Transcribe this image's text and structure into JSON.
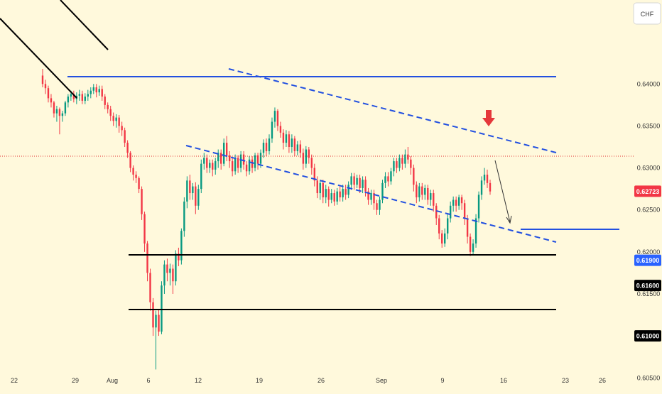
{
  "currency_label": "CHF",
  "chart_data": {
    "type": "candlestick",
    "title": "",
    "xlabel": "",
    "ylabel": "",
    "ylim": [
      0.6035,
      0.65
    ],
    "y_ticks": [
      "0.64000",
      "0.63500",
      "0.63000",
      "0.62500",
      "0.62000",
      "0.61500",
      "0.60500"
    ],
    "x_ticks": [
      "22",
      "29",
      "Aug",
      "6",
      "12",
      "19",
      "26",
      "Sep",
      "9",
      "16",
      "23",
      "26"
    ],
    "price_labels": [
      {
        "text": "0.62723",
        "value": 0.62723,
        "style": "current"
      },
      {
        "text": "0.61900",
        "value": 0.619,
        "style": "target"
      },
      {
        "text": "0.61600",
        "value": 0.616,
        "style": "level"
      },
      {
        "text": "0.61000",
        "value": 0.61,
        "style": "level"
      }
    ],
    "candles": [
      [
        0.641,
        0.64,
        0.6418,
        0.6396
      ],
      [
        0.64,
        0.6395,
        0.6405,
        0.6388
      ],
      [
        0.6395,
        0.6383,
        0.6398,
        0.6378
      ],
      [
        0.6383,
        0.6378,
        0.6388,
        0.6372
      ],
      [
        0.6378,
        0.6365,
        0.638,
        0.636
      ],
      [
        0.6365,
        0.637,
        0.6374,
        0.6355
      ],
      [
        0.637,
        0.6362,
        0.6372,
        0.634
      ],
      [
        0.6362,
        0.6365,
        0.6368,
        0.6355
      ],
      [
        0.6365,
        0.6378,
        0.638,
        0.6362
      ],
      [
        0.6378,
        0.6385,
        0.6388,
        0.6372
      ],
      [
        0.6385,
        0.6388,
        0.6392,
        0.638
      ],
      [
        0.6388,
        0.6382,
        0.6392,
        0.6378
      ],
      [
        0.6382,
        0.6386,
        0.639,
        0.6376
      ],
      [
        0.6386,
        0.6388,
        0.6393,
        0.638
      ],
      [
        0.6388,
        0.638,
        0.6392,
        0.6376
      ],
      [
        0.638,
        0.6385,
        0.6389,
        0.6376
      ],
      [
        0.6385,
        0.6388,
        0.6393,
        0.638
      ],
      [
        0.6388,
        0.6392,
        0.6396,
        0.6383
      ],
      [
        0.6392,
        0.6396,
        0.64,
        0.6388
      ],
      [
        0.6396,
        0.639,
        0.64,
        0.6384
      ],
      [
        0.639,
        0.6394,
        0.6398,
        0.6386
      ],
      [
        0.6394,
        0.6385,
        0.6398,
        0.638
      ],
      [
        0.6385,
        0.6375,
        0.6388,
        0.637
      ],
      [
        0.6375,
        0.637,
        0.6378,
        0.6365
      ],
      [
        0.637,
        0.6362,
        0.6374,
        0.6356
      ],
      [
        0.6362,
        0.6356,
        0.6366,
        0.635
      ],
      [
        0.6356,
        0.636,
        0.6364,
        0.6348
      ],
      [
        0.636,
        0.635,
        0.6363,
        0.6342
      ],
      [
        0.635,
        0.6345,
        0.6355,
        0.6338
      ],
      [
        0.6345,
        0.633,
        0.6348,
        0.6325
      ],
      [
        0.633,
        0.6318,
        0.6333,
        0.6312
      ],
      [
        0.6318,
        0.63,
        0.632,
        0.6295
      ],
      [
        0.63,
        0.6292,
        0.6303,
        0.6285
      ],
      [
        0.6292,
        0.6288,
        0.6296,
        0.6282
      ],
      [
        0.6288,
        0.6275,
        0.629,
        0.627
      ],
      [
        0.6275,
        0.6245,
        0.6278,
        0.6238
      ],
      [
        0.6245,
        0.621,
        0.6248,
        0.62
      ],
      [
        0.621,
        0.6175,
        0.6213,
        0.6165
      ],
      [
        0.6175,
        0.614,
        0.618,
        0.613
      ],
      [
        0.614,
        0.611,
        0.6145,
        0.61
      ],
      [
        0.611,
        0.6125,
        0.613,
        0.606
      ],
      [
        0.6125,
        0.6105,
        0.6132,
        0.61
      ],
      [
        0.6105,
        0.616,
        0.6165,
        0.6102
      ],
      [
        0.616,
        0.6185,
        0.619,
        0.615
      ],
      [
        0.6185,
        0.6175,
        0.6192,
        0.6165
      ],
      [
        0.6175,
        0.618,
        0.6186,
        0.616
      ],
      [
        0.618,
        0.6165,
        0.6185,
        0.615
      ],
      [
        0.6165,
        0.6198,
        0.6202,
        0.616
      ],
      [
        0.6198,
        0.619,
        0.6205,
        0.6183
      ],
      [
        0.619,
        0.6225,
        0.6228,
        0.6185
      ],
      [
        0.6225,
        0.626,
        0.6265,
        0.6218
      ],
      [
        0.626,
        0.6285,
        0.629,
        0.6252
      ],
      [
        0.6285,
        0.627,
        0.6292,
        0.6262
      ],
      [
        0.627,
        0.6278,
        0.6282,
        0.6262
      ],
      [
        0.6278,
        0.6255,
        0.6283,
        0.6245
      ],
      [
        0.6255,
        0.6275,
        0.628,
        0.625
      ],
      [
        0.6275,
        0.6305,
        0.631,
        0.627
      ],
      [
        0.6305,
        0.6312,
        0.6318,
        0.6298
      ],
      [
        0.6312,
        0.63,
        0.6316,
        0.6294
      ],
      [
        0.63,
        0.6306,
        0.631,
        0.6294
      ],
      [
        0.6306,
        0.6298,
        0.631,
        0.629
      ],
      [
        0.6298,
        0.6308,
        0.6312,
        0.6292
      ],
      [
        0.6308,
        0.6318,
        0.6322,
        0.63
      ],
      [
        0.6318,
        0.6305,
        0.6322,
        0.6298
      ],
      [
        0.6305,
        0.633,
        0.6335,
        0.6302
      ],
      [
        0.633,
        0.6315,
        0.6338,
        0.6308
      ],
      [
        0.6315,
        0.6308,
        0.632,
        0.63
      ],
      [
        0.6308,
        0.6296,
        0.6312,
        0.629
      ],
      [
        0.6296,
        0.6312,
        0.6316,
        0.6292
      ],
      [
        0.6312,
        0.63,
        0.6315,
        0.6294
      ],
      [
        0.63,
        0.6316,
        0.632,
        0.6295
      ],
      [
        0.6316,
        0.6304,
        0.632,
        0.6298
      ],
      [
        0.6304,
        0.6296,
        0.6308,
        0.629
      ],
      [
        0.6296,
        0.631,
        0.6314,
        0.6292
      ],
      [
        0.631,
        0.63,
        0.6314,
        0.6294
      ],
      [
        0.63,
        0.6315,
        0.6318,
        0.6296
      ],
      [
        0.6315,
        0.6305,
        0.6318,
        0.6298
      ],
      [
        0.6305,
        0.6318,
        0.6322,
        0.63
      ],
      [
        0.6318,
        0.633,
        0.6334,
        0.6312
      ],
      [
        0.633,
        0.632,
        0.6335,
        0.6314
      ],
      [
        0.632,
        0.6335,
        0.634,
        0.6316
      ],
      [
        0.6335,
        0.6355,
        0.636,
        0.633
      ],
      [
        0.6355,
        0.6368,
        0.6372,
        0.6348
      ],
      [
        0.6368,
        0.635,
        0.637,
        0.6344
      ],
      [
        0.635,
        0.6342,
        0.6355,
        0.6336
      ],
      [
        0.6342,
        0.633,
        0.6346,
        0.6322
      ],
      [
        0.633,
        0.634,
        0.6345,
        0.6325
      ],
      [
        0.634,
        0.6325,
        0.6344,
        0.6318
      ],
      [
        0.6325,
        0.6335,
        0.634,
        0.6318
      ],
      [
        0.6335,
        0.632,
        0.6338,
        0.6314
      ],
      [
        0.632,
        0.6328,
        0.6332,
        0.6315
      ],
      [
        0.6328,
        0.6318,
        0.6333,
        0.6312
      ],
      [
        0.6318,
        0.6305,
        0.6323,
        0.6298
      ],
      [
        0.6305,
        0.6322,
        0.6326,
        0.63
      ],
      [
        0.6322,
        0.6312,
        0.6325,
        0.6305
      ],
      [
        0.6312,
        0.63,
        0.6316,
        0.6292
      ],
      [
        0.63,
        0.6285,
        0.6305,
        0.6278
      ],
      [
        0.6285,
        0.627,
        0.629,
        0.6264
      ],
      [
        0.627,
        0.6282,
        0.6286,
        0.6262
      ],
      [
        0.6282,
        0.6265,
        0.6286,
        0.6258
      ],
      [
        0.6265,
        0.6275,
        0.628,
        0.6258
      ],
      [
        0.6275,
        0.6262,
        0.6278,
        0.6254
      ],
      [
        0.6262,
        0.627,
        0.6275,
        0.6258
      ],
      [
        0.627,
        0.626,
        0.6274,
        0.6255
      ],
      [
        0.626,
        0.6272,
        0.6276,
        0.6256
      ],
      [
        0.6272,
        0.6265,
        0.6278,
        0.626
      ],
      [
        0.6265,
        0.6275,
        0.628,
        0.626
      ],
      [
        0.6275,
        0.6268,
        0.628,
        0.6262
      ],
      [
        0.6268,
        0.628,
        0.6284,
        0.6264
      ],
      [
        0.628,
        0.629,
        0.6294,
        0.6274
      ],
      [
        0.629,
        0.628,
        0.6294,
        0.6274
      ],
      [
        0.628,
        0.6288,
        0.6292,
        0.6276
      ],
      [
        0.6288,
        0.6276,
        0.6292,
        0.627
      ],
      [
        0.6276,
        0.6286,
        0.629,
        0.627
      ],
      [
        0.6286,
        0.6272,
        0.629,
        0.6266
      ],
      [
        0.6272,
        0.6262,
        0.6276,
        0.6256
      ],
      [
        0.6262,
        0.627,
        0.6274,
        0.6256
      ],
      [
        0.627,
        0.6258,
        0.6274,
        0.625
      ],
      [
        0.6258,
        0.625,
        0.6262,
        0.6244
      ],
      [
        0.625,
        0.6262,
        0.6266,
        0.6244
      ],
      [
        0.6262,
        0.6282,
        0.6286,
        0.6258
      ],
      [
        0.6282,
        0.629,
        0.6295,
        0.6276
      ],
      [
        0.629,
        0.6284,
        0.6295,
        0.6278
      ],
      [
        0.6284,
        0.6296,
        0.63,
        0.628
      ],
      [
        0.6296,
        0.6308,
        0.6312,
        0.629
      ],
      [
        0.6308,
        0.63,
        0.6312,
        0.6294
      ],
      [
        0.63,
        0.6312,
        0.6316,
        0.6296
      ],
      [
        0.6312,
        0.6305,
        0.6316,
        0.6298
      ],
      [
        0.6305,
        0.6316,
        0.6322,
        0.63
      ],
      [
        0.6316,
        0.631,
        0.6325,
        0.6305
      ],
      [
        0.631,
        0.63,
        0.6314,
        0.6292
      ],
      [
        0.63,
        0.628,
        0.6304,
        0.6272
      ],
      [
        0.628,
        0.6265,
        0.6284,
        0.6258
      ],
      [
        0.6265,
        0.6278,
        0.6282,
        0.626
      ],
      [
        0.6278,
        0.6268,
        0.6282,
        0.6262
      ],
      [
        0.6268,
        0.6276,
        0.628,
        0.6262
      ],
      [
        0.6276,
        0.6262,
        0.628,
        0.6256
      ],
      [
        0.6262,
        0.627,
        0.6274,
        0.6255
      ],
      [
        0.627,
        0.6255,
        0.6274,
        0.6248
      ],
      [
        0.6255,
        0.624,
        0.6258,
        0.6232
      ],
      [
        0.624,
        0.6222,
        0.6244,
        0.6215
      ],
      [
        0.6222,
        0.621,
        0.6226,
        0.6205
      ],
      [
        0.621,
        0.6222,
        0.6228,
        0.6206
      ],
      [
        0.6222,
        0.624,
        0.6245,
        0.6215
      ],
      [
        0.624,
        0.6255,
        0.626,
        0.6235
      ],
      [
        0.6255,
        0.6262,
        0.6266,
        0.6248
      ],
      [
        0.6262,
        0.6255,
        0.6266,
        0.6248
      ],
      [
        0.6255,
        0.6265,
        0.6268,
        0.625
      ],
      [
        0.6265,
        0.6258,
        0.6268,
        0.625
      ],
      [
        0.6258,
        0.624,
        0.6262,
        0.6232
      ],
      [
        0.624,
        0.6218,
        0.6244,
        0.621
      ],
      [
        0.6218,
        0.62,
        0.6222,
        0.6195
      ],
      [
        0.62,
        0.621,
        0.6215,
        0.6196
      ],
      [
        0.621,
        0.624,
        0.6245,
        0.6205
      ],
      [
        0.624,
        0.6268,
        0.6272,
        0.6235
      ],
      [
        0.6268,
        0.6285,
        0.629,
        0.6262
      ],
      [
        0.6285,
        0.6292,
        0.63,
        0.628
      ],
      [
        0.6292,
        0.6282,
        0.6298,
        0.6276
      ],
      [
        0.6282,
        0.6272,
        0.6286,
        0.6268
      ]
    ]
  }
}
